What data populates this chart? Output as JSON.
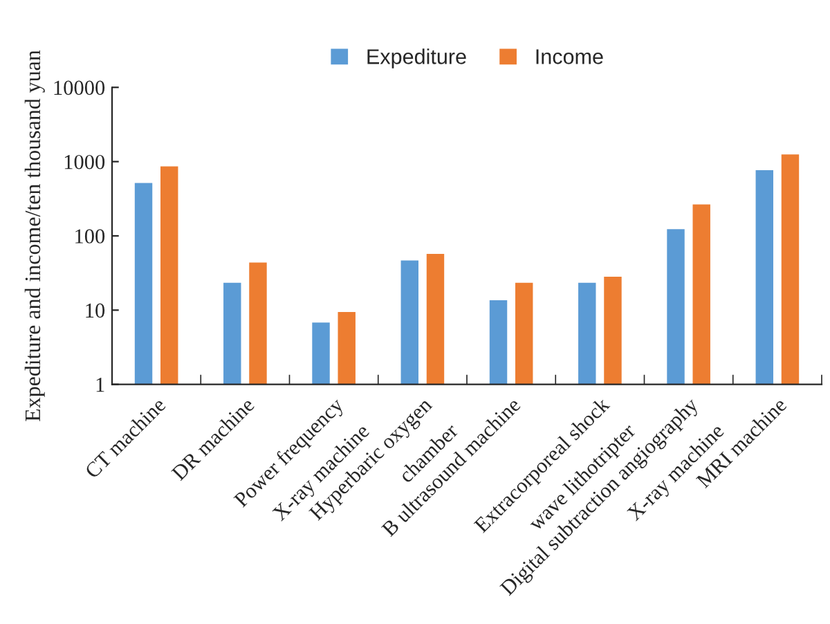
{
  "chart_data": {
    "type": "bar",
    "ylabel": "Expediture and income/ten thousand yuan",
    "categories": [
      "CT machine",
      "DR machine",
      "Power frequency\nX-ray machine",
      "Hyperbaric oxygen\nchamber",
      "B ultrasound machine",
      "Extracorporeal shock\nwave lithotripter",
      "Digital subtraction angiography\nX-ray machine",
      "MRI machine"
    ],
    "series": [
      {
        "name": "Expediture",
        "color": "#5b9bd5",
        "values": [
          530,
          24,
          7,
          48,
          14,
          24,
          127,
          790
        ]
      },
      {
        "name": "Income",
        "color": "#ed7d31",
        "values": [
          890,
          45,
          9.7,
          59,
          24,
          29,
          273,
          1290
        ]
      }
    ],
    "log": true,
    "ylim": [
      1,
      10000
    ],
    "yticks": [
      1,
      10,
      100,
      1000,
      10000
    ],
    "legend": "top",
    "grid": false
  }
}
